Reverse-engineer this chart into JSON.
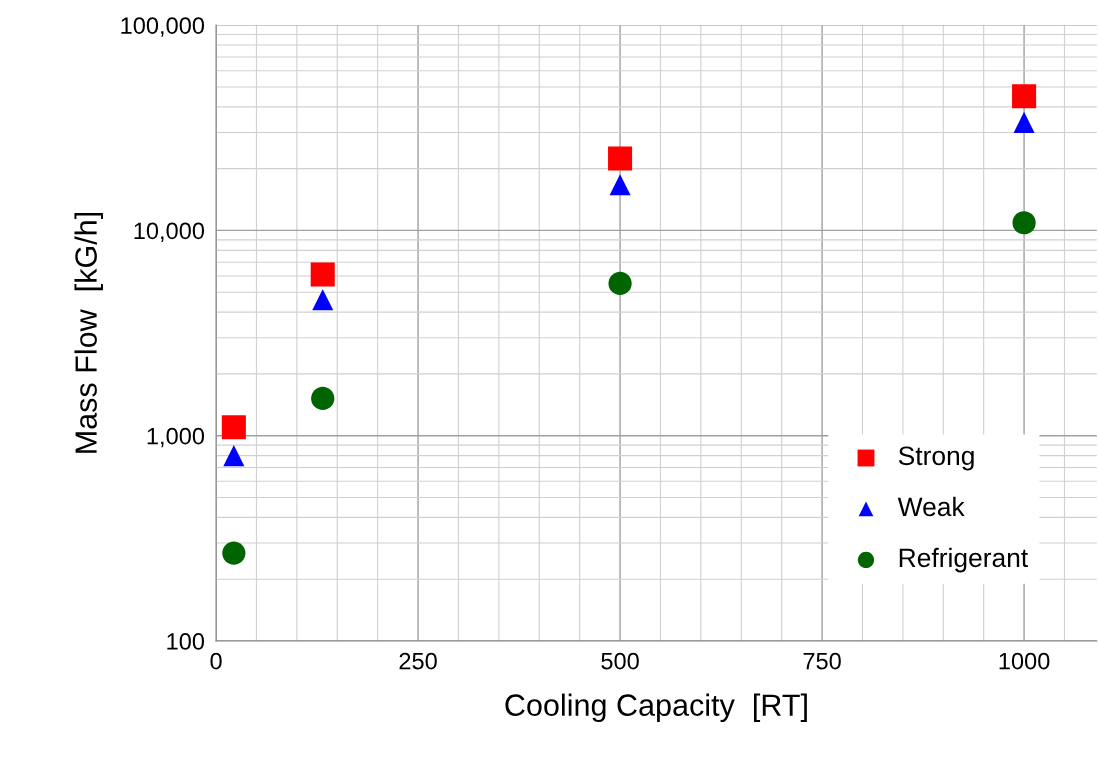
{
  "chart_data": {
    "type": "scatter",
    "xlabel": "Cooling Capacity  [RT]",
    "ylabel": "Mass Flow  [kG/h]",
    "x": [
      22,
      132,
      500,
      1000
    ],
    "series": [
      {
        "name": "Strong",
        "color": "#ff0000",
        "marker": "square",
        "values": [
          1100,
          6100,
          22400,
          45000
        ]
      },
      {
        "name": "Weak",
        "color": "#0000ff",
        "marker": "triangle",
        "values": [
          800,
          4600,
          16700,
          33600
        ]
      },
      {
        "name": "Refrigerant",
        "color": "#006400",
        "marker": "circle",
        "values": [
          268,
          1520,
          5520,
          10900
        ]
      }
    ],
    "log": "y",
    "xlim": [
      0,
      1090
    ],
    "ylim": [
      100,
      100000
    ],
    "xticks": [
      0,
      250,
      500,
      750,
      1000
    ],
    "yticks": [
      100,
      {
        "value": 1000,
        "label": "1,000"
      },
      {
        "value": 10000,
        "label": "10,000"
      },
      {
        "value": 100000,
        "label": "100,000"
      }
    ],
    "grid": true,
    "legend": "bottom right"
  }
}
